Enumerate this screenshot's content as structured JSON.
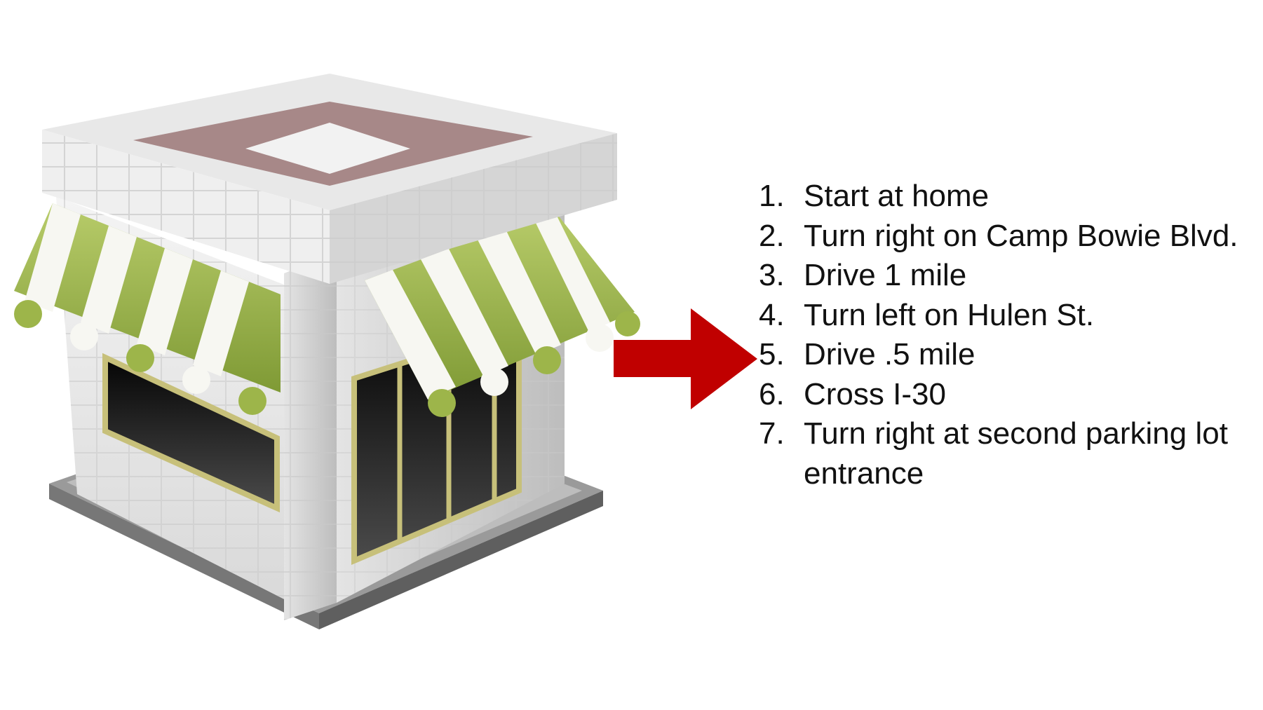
{
  "arrow": {
    "color": "#c00000"
  },
  "store": {
    "awning_green": "#9db54a",
    "awning_white": "#f7f7f2",
    "frame_gold": "#c7c07a"
  },
  "directions": {
    "steps": [
      {
        "num": "1.",
        "text": "Start at home"
      },
      {
        "num": "2.",
        "text": "Turn right on Camp Bowie Blvd."
      },
      {
        "num": "3.",
        "text": "Drive 1 mile"
      },
      {
        "num": "4.",
        "text": "Turn left on Hulen St."
      },
      {
        "num": "5.",
        "text": "Drive .5 mile"
      },
      {
        "num": "6.",
        "text": "Cross I-30"
      },
      {
        "num": "7.",
        "text": "Turn right at second parking lot entrance"
      }
    ]
  }
}
